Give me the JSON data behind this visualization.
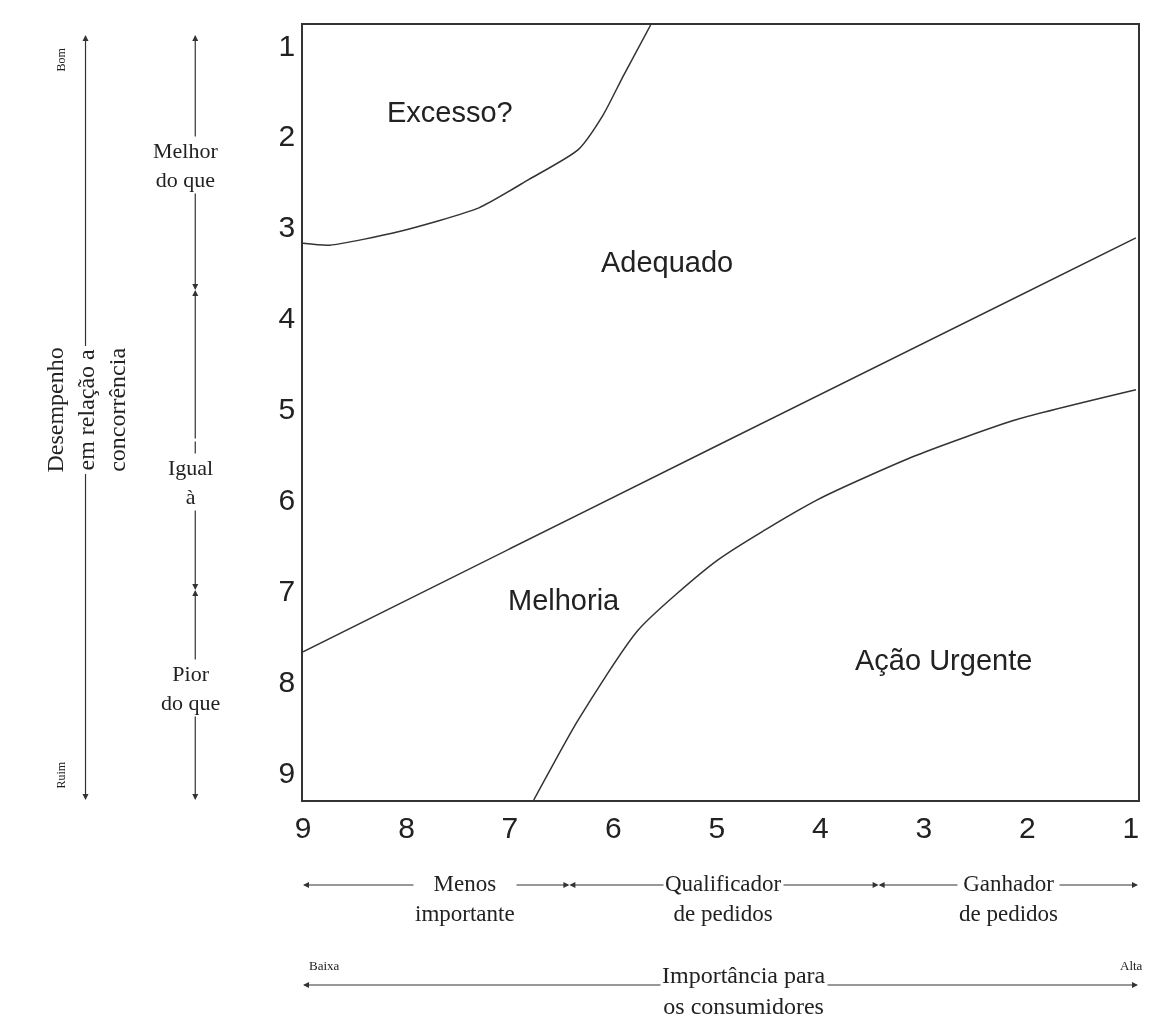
{
  "chart_data": {
    "type": "line",
    "xlabel": "Importância para\nos consumidores",
    "series": [
      {
        "color": "#333333",
        "x": [
          9,
          8.74,
          8.07,
          7.3,
          6.82,
          6.34,
          6.1,
          5.9,
          5.64
        ],
        "values": [
          3.18,
          3.2,
          3.05,
          2.79,
          2.48,
          2.15,
          1.77,
          1.33,
          0.78
        ]
      },
      {
        "color": "#333333",
        "x": [
          9,
          4.99,
          0.95
        ],
        "values": [
          7.67,
          5.4,
          3.12
        ]
      },
      {
        "color": "#333333",
        "x": [
          6.77,
          6.34,
          5.76,
          4.99,
          4.03,
          3.07,
          2.11,
          0.95
        ],
        "values": [
          9.3,
          8.42,
          7.43,
          6.66,
          6.0,
          5.51,
          5.12,
          4.79
        ]
      }
    ],
    "xlim": [
      9,
      0.93
    ],
    "ylim": [
      9.3,
      0.78
    ],
    "xticks": [
      9,
      8,
      7,
      6,
      5,
      4,
      3,
      2,
      1
    ],
    "yticks": [
      1,
      2,
      3,
      4,
      5,
      6,
      7,
      8,
      9
    ],
    "marker": "none",
    "line_style": "solid",
    "annotations": [
      "Excesso?",
      "Adequado",
      "Melhoria",
      "Ação Urgente",
      "Bom",
      "Ruim",
      "Melhor\ndo que",
      "Igual\nà",
      "Pior\ndo que",
      "Menos\nimportante",
      "Qualificador\nde pedidos",
      "Ganhador\nde pedidos",
      "Baixa",
      "Alta",
      "Desempenho\nem relação a\nconcorrência"
    ]
  }
}
